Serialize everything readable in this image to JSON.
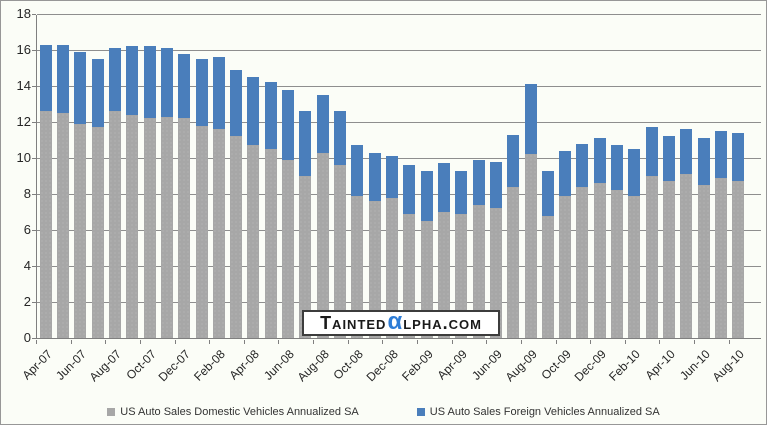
{
  "watermark": {
    "prefix": "Tainted",
    "alpha_glyph": "α",
    "suffix": "lpha.com"
  },
  "legend": [
    {
      "label": "US Auto Sales Domestic Vehicles Annualized SA",
      "color": "#a7a7a7"
    },
    {
      "label": "US Auto Sales Foreign Vehicles Annualized SA",
      "color": "#4a7ebb"
    }
  ],
  "colors": {
    "domestic_bar": "#a7a7a7",
    "foreign_bar": "#4a7ebb",
    "gridline": "#8e8e8e",
    "axis": "#7f7f7f",
    "background": "#fbfdf7",
    "watermark_alpha_blue": "#2d7cd6"
  },
  "chart_data": {
    "type": "bar",
    "stacked": true,
    "title": "",
    "xlabel": "",
    "ylabel": "",
    "ylim": [
      0,
      18
    ],
    "y_ticks": [
      0,
      2,
      4,
      6,
      8,
      10,
      12,
      14,
      16,
      18
    ],
    "grid": true,
    "legend_position": "bottom",
    "categories": [
      "Apr-07",
      "May-07",
      "Jun-07",
      "Jul-07",
      "Aug-07",
      "Sep-07",
      "Oct-07",
      "Nov-07",
      "Dec-07",
      "Jan-08",
      "Feb-08",
      "Mar-08",
      "Apr-08",
      "May-08",
      "Jun-08",
      "Jul-08",
      "Aug-08",
      "Sep-08",
      "Oct-08",
      "Nov-08",
      "Dec-08",
      "Jan-09",
      "Feb-09",
      "Mar-09",
      "Apr-09",
      "May-09",
      "Jun-09",
      "Jul-09",
      "Aug-09",
      "Sep-09",
      "Oct-09",
      "Nov-09",
      "Dec-09",
      "Jan-10",
      "Feb-10",
      "Mar-10",
      "Apr-10",
      "May-10",
      "Jun-10",
      "Jul-10",
      "Aug-10"
    ],
    "x_tick_labels": [
      "Apr-07",
      "Jun-07",
      "Aug-07",
      "Oct-07",
      "Dec-07",
      "Feb-08",
      "Apr-08",
      "Jun-08",
      "Aug-08",
      "Oct-08",
      "Dec-08",
      "Feb-09",
      "Apr-09",
      "Jun-09",
      "Aug-09",
      "Oct-09",
      "Dec-09",
      "Feb-10",
      "Apr-10",
      "Jun-10",
      "Aug-10"
    ],
    "series": [
      {
        "name": "US Auto Sales Domestic Vehicles Annualized SA",
        "color": "#a7a7a7",
        "values": [
          12.6,
          12.5,
          11.9,
          11.7,
          12.6,
          12.4,
          12.2,
          12.3,
          12.2,
          11.8,
          11.6,
          11.2,
          10.7,
          10.5,
          9.9,
          9.0,
          10.3,
          9.6,
          7.9,
          7.6,
          7.8,
          6.9,
          6.5,
          7.0,
          6.9,
          7.4,
          7.2,
          8.4,
          10.2,
          6.8,
          7.9,
          8.4,
          8.6,
          8.2,
          7.9,
          9.0,
          8.7,
          9.1,
          8.5,
          8.9,
          8.7
        ]
      },
      {
        "name": "US Auto Sales Foreign Vehicles Annualized SA",
        "color": "#4a7ebb",
        "values": [
          3.7,
          3.8,
          4.0,
          3.8,
          3.5,
          3.8,
          4.0,
          3.8,
          3.6,
          3.7,
          4.0,
          3.7,
          3.8,
          3.7,
          3.9,
          3.6,
          3.2,
          3.0,
          2.8,
          2.7,
          2.3,
          2.7,
          2.8,
          2.7,
          2.4,
          2.5,
          2.6,
          2.9,
          3.9,
          2.5,
          2.5,
          2.4,
          2.5,
          2.5,
          2.6,
          2.7,
          2.5,
          2.5,
          2.6,
          2.6,
          2.7
        ]
      }
    ]
  }
}
